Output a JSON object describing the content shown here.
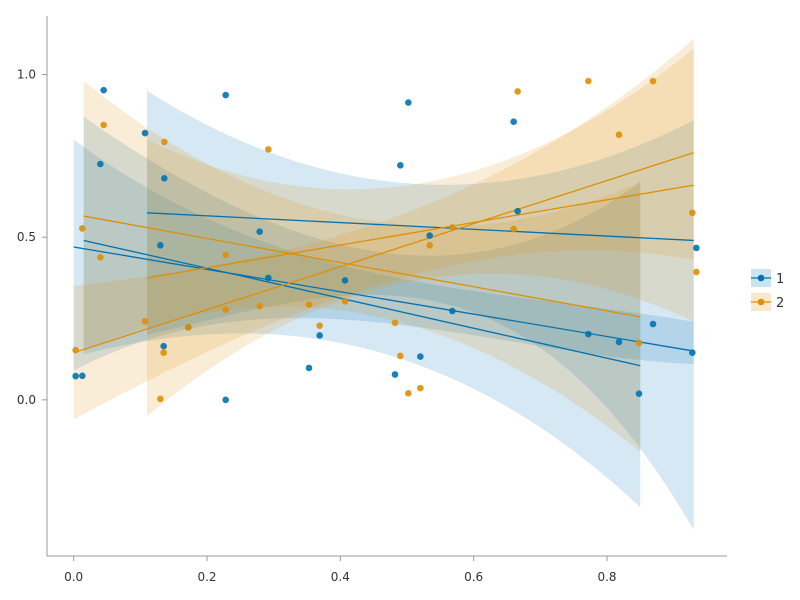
{
  "chart_data": {
    "type": "scatter",
    "title": "",
    "xlabel": "",
    "ylabel": "",
    "xlim": [
      -0.04,
      0.98
    ],
    "ylim": [
      -0.48,
      1.18
    ],
    "xticks": [
      {
        "value": 0.0,
        "label": "0.0"
      },
      {
        "value": 0.2,
        "label": "0.2"
      },
      {
        "value": 0.4,
        "label": "0.4"
      },
      {
        "value": 0.6,
        "label": "0.6"
      },
      {
        "value": 0.8,
        "label": "0.8"
      }
    ],
    "yticks": [
      {
        "value": 0.0,
        "label": "0.0"
      },
      {
        "value": 0.5,
        "label": "0.5"
      },
      {
        "value": 1.0,
        "label": "1.0"
      }
    ],
    "grid": false,
    "legend_position": "right",
    "series": [
      {
        "name": "1",
        "color": "#0173b2",
        "points": [
          [
            0.003,
            0.073
          ],
          [
            0.013,
            0.074
          ],
          [
            0.04,
            0.725
          ],
          [
            0.045,
            0.952
          ],
          [
            0.107,
            0.82
          ],
          [
            0.13,
            0.475
          ],
          [
            0.135,
            0.165
          ],
          [
            0.136,
            0.681
          ],
          [
            0.172,
            0.223
          ],
          [
            0.228,
            0.0
          ],
          [
            0.228,
            0.937
          ],
          [
            0.279,
            0.517
          ],
          [
            0.292,
            0.375
          ],
          [
            0.353,
            0.098
          ],
          [
            0.369,
            0.198
          ],
          [
            0.407,
            0.367
          ],
          [
            0.482,
            0.078
          ],
          [
            0.49,
            0.721
          ],
          [
            0.502,
            0.914
          ],
          [
            0.52,
            0.133
          ],
          [
            0.534,
            0.505
          ],
          [
            0.568,
            0.273
          ],
          [
            0.66,
            0.855
          ],
          [
            0.666,
            0.58
          ],
          [
            0.772,
            0.202
          ],
          [
            0.818,
            0.178
          ],
          [
            0.848,
            0.019
          ],
          [
            0.869,
            0.233
          ],
          [
            0.928,
            0.145
          ],
          [
            0.934,
            0.467
          ]
        ],
        "fits": [
          {
            "x": [
              0.0,
              0.93
            ],
            "y": [
              0.47,
              0.15
            ],
            "band_lower": [
              0.09,
              0.11
            ],
            "band_upper": [
              0.8,
              0.24
            ]
          },
          {
            "x": [
              0.015,
              0.85
            ],
            "y": [
              0.49,
              0.105
            ],
            "band_lower": [
              0.14,
              -0.33
            ],
            "band_upper": [
              0.87,
              0.67
            ]
          },
          {
            "x": [
              0.11,
              0.93
            ],
            "y": [
              0.575,
              0.49
            ],
            "band_lower": [
              0.2,
              -0.4
            ],
            "band_upper": [
              0.95,
              0.86
            ]
          }
        ]
      },
      {
        "name": "2",
        "color": "#de8f05",
        "points": [
          [
            0.003,
            0.153
          ],
          [
            0.013,
            0.527
          ],
          [
            0.04,
            0.438
          ],
          [
            0.045,
            0.845
          ],
          [
            0.107,
            0.242
          ],
          [
            0.13,
            0.003
          ],
          [
            0.135,
            0.145
          ],
          [
            0.136,
            0.793
          ],
          [
            0.172,
            0.223
          ],
          [
            0.228,
            0.277
          ],
          [
            0.228,
            0.445
          ],
          [
            0.279,
            0.288
          ],
          [
            0.292,
            0.77
          ],
          [
            0.353,
            0.293
          ],
          [
            0.369,
            0.228
          ],
          [
            0.407,
            0.303
          ],
          [
            0.482,
            0.237
          ],
          [
            0.49,
            0.135
          ],
          [
            0.502,
            0.02
          ],
          [
            0.52,
            0.036
          ],
          [
            0.534,
            0.475
          ],
          [
            0.568,
            0.53
          ],
          [
            0.66,
            0.525
          ],
          [
            0.666,
            0.948
          ],
          [
            0.772,
            0.98
          ],
          [
            0.818,
            0.815
          ],
          [
            0.848,
            0.175
          ],
          [
            0.869,
            0.98
          ],
          [
            0.928,
            0.575
          ],
          [
            0.934,
            0.393
          ]
        ],
        "fits": [
          {
            "x": [
              0.0,
              0.93
            ],
            "y": [
              0.145,
              0.76
            ],
            "band_lower": [
              -0.06,
              0.43
            ],
            "band_upper": [
              0.35,
              1.11
            ]
          },
          {
            "x": [
              0.015,
              0.85
            ],
            "y": [
              0.565,
              0.255
            ],
            "band_lower": [
              0.15,
              -0.16
            ],
            "band_upper": [
              0.98,
              0.67
            ]
          },
          {
            "x": [
              0.11,
              0.93
            ],
            "y": [
              0.375,
              0.66
            ],
            "band_lower": [
              -0.05,
              0.24
            ],
            "band_upper": [
              0.8,
              1.08
            ]
          }
        ]
      }
    ]
  }
}
